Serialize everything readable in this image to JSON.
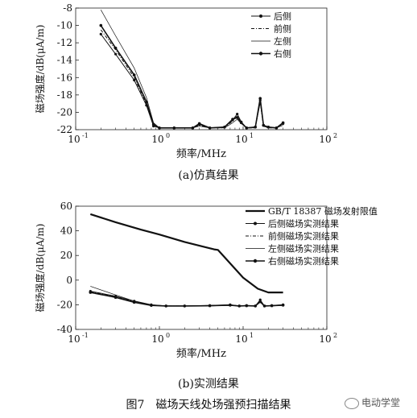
{
  "chart_data": [
    {
      "type": "line",
      "title": "",
      "xlabel": "频率/MHz",
      "ylabel": "磁场强度/dB(μA/m)",
      "x_scale": "log",
      "xlim": [
        0.1,
        100
      ],
      "ylim": [
        -22,
        -8
      ],
      "x_ticks": [
        0.1,
        1,
        10,
        100
      ],
      "x_tick_labels": [
        "10",
        "10",
        "10",
        "10"
      ],
      "x_tick_exponents": [
        "-1",
        "0",
        "1",
        "2"
      ],
      "y_ticks": [
        -8,
        -10,
        -12,
        -14,
        -16,
        -18,
        -20,
        -22
      ],
      "y_tick_labels": [
        "-8",
        "-10",
        "-12",
        "-14",
        "-16",
        "-18",
        "-20",
        "-22"
      ],
      "grid": false,
      "legend_position": "top-right",
      "series": [
        {
          "name": "后侧",
          "style": "marker",
          "x": [
            0.2,
            0.3,
            0.5,
            0.7,
            0.85,
            1.0,
            1.5,
            2.5,
            3.0,
            4.0,
            6.0,
            7.5,
            8.5,
            9.5,
            11,
            14,
            16,
            17.5,
            20,
            25,
            30
          ],
          "y": [
            -11.0,
            -13.3,
            -16.3,
            -19.2,
            -21.6,
            -21.8,
            -21.8,
            -21.8,
            -21.4,
            -21.8,
            -21.7,
            -20.9,
            -20.2,
            -21.1,
            -21.8,
            -21.7,
            -18.6,
            -21.5,
            -21.7,
            -21.8,
            -21.3
          ]
        },
        {
          "name": "前侧",
          "style": "dashdot",
          "x": [
            0.2,
            0.3,
            0.5,
            0.7,
            0.85,
            1.0,
            1.5,
            2.5,
            3.0,
            4.0,
            6.0,
            7.5,
            8.5,
            9.5,
            11,
            14,
            16,
            17.5,
            20,
            25,
            30
          ],
          "y": [
            -10.5,
            -12.8,
            -16.0,
            -19.0,
            -21.5,
            -21.8,
            -21.8,
            -21.8,
            -21.5,
            -21.8,
            -21.8,
            -21.0,
            -20.4,
            -21.2,
            -21.8,
            -21.8,
            -18.7,
            -21.6,
            -21.8,
            -21.8,
            -21.4
          ]
        },
        {
          "name": "左侧",
          "style": "thin",
          "x": [
            0.2,
            0.3,
            0.5,
            0.7,
            0.85,
            1.0,
            1.5,
            2.5,
            3.0,
            4.0,
            6.0,
            7.5,
            8.5,
            9.5,
            11,
            14,
            16,
            17.5,
            20,
            25,
            30
          ],
          "y": [
            -8.2,
            -11.2,
            -14.9,
            -18.3,
            -21.2,
            -21.8,
            -21.8,
            -21.8,
            -21.6,
            -21.8,
            -21.8,
            -21.2,
            -20.8,
            -21.3,
            -21.8,
            -21.8,
            -18.9,
            -21.6,
            -21.8,
            -21.8,
            -21.5
          ]
        },
        {
          "name": "右侧",
          "style": "thick-marker",
          "x": [
            0.2,
            0.3,
            0.5,
            0.7,
            0.85,
            1.0,
            1.5,
            2.5,
            3.0,
            4.0,
            6.0,
            7.5,
            8.5,
            9.5,
            11,
            14,
            16,
            17.5,
            20,
            25,
            30
          ],
          "y": [
            -10.0,
            -12.6,
            -15.7,
            -18.8,
            -21.4,
            -21.8,
            -21.8,
            -21.8,
            -21.3,
            -21.8,
            -21.7,
            -20.8,
            -20.6,
            -21.2,
            -21.8,
            -21.7,
            -18.4,
            -21.5,
            -21.7,
            -21.8,
            -21.2
          ]
        }
      ]
    },
    {
      "type": "line",
      "title": "",
      "xlabel": "频率/MHz",
      "ylabel": "磁场强度/dB(μA/m)",
      "x_scale": "log",
      "xlim": [
        0.1,
        100
      ],
      "ylim": [
        -40,
        60
      ],
      "x_ticks": [
        0.1,
        1,
        10,
        100
      ],
      "x_tick_labels": [
        "10",
        "10",
        "10",
        "10"
      ],
      "x_tick_exponents": [
        "-1",
        "0",
        "1",
        "2"
      ],
      "y_ticks": [
        60,
        40,
        20,
        0,
        -20,
        -40
      ],
      "y_tick_labels": [
        "60",
        "40",
        "20",
        "0",
        "-20",
        "-40"
      ],
      "grid": false,
      "legend_position": "top-right",
      "series": [
        {
          "name": "GB/T 18387 磁场发射限值",
          "style": "limit",
          "x": [
            0.15,
            0.3,
            0.6,
            1.0,
            2.0,
            4.5,
            5.0,
            10,
            15,
            20,
            30
          ],
          "y": [
            53.5,
            47,
            41,
            37,
            31,
            25,
            24.5,
            2,
            -7,
            -10,
            -10
          ]
        },
        {
          "name": "后侧磁场实测结果",
          "style": "marker",
          "x": [
            0.15,
            0.3,
            0.5,
            0.8,
            1.2,
            2,
            4,
            7,
            9,
            11,
            14,
            16,
            18,
            22,
            30
          ],
          "y": [
            -9,
            -13,
            -17,
            -20,
            -21,
            -21,
            -20.5,
            -20,
            -21,
            -20.5,
            -21,
            -16,
            -21,
            -20.5,
            -20
          ]
        },
        {
          "name": "前侧磁场实测结果",
          "style": "dashdot",
          "x": [
            0.15,
            0.3,
            0.5,
            0.8,
            1.2,
            2,
            4,
            7,
            9,
            11,
            14,
            16,
            18,
            22,
            30
          ],
          "y": [
            -9.5,
            -13.5,
            -17.5,
            -20.2,
            -21,
            -21,
            -20.7,
            -20.2,
            -21,
            -20.7,
            -21,
            -17,
            -21,
            -20.7,
            -20.2
          ]
        },
        {
          "name": "左侧磁场实测结果",
          "style": "thin",
          "x": [
            0.15,
            0.3,
            0.5,
            0.8,
            1.2,
            2,
            4,
            7,
            9,
            11,
            14,
            16,
            18,
            22,
            30
          ],
          "y": [
            -5,
            -12,
            -17,
            -20.5,
            -21.2,
            -21.2,
            -21,
            -20.5,
            -21,
            -21,
            -21,
            -18,
            -21.2,
            -21,
            -20.5
          ]
        },
        {
          "name": "右侧磁场实测结果",
          "style": "thick-marker",
          "x": [
            0.15,
            0.3,
            0.5,
            0.8,
            1.2,
            2,
            4,
            7,
            9,
            11,
            14,
            16,
            18,
            22,
            30
          ],
          "y": [
            -10,
            -14,
            -18,
            -20.5,
            -21,
            -21,
            -20.8,
            -20.3,
            -21,
            -20.8,
            -21,
            -17.5,
            -21,
            -20.8,
            -20.3
          ]
        }
      ]
    }
  ],
  "captions": {
    "a": "(a)仿真结果",
    "b": "(b)实测结果",
    "figure": "图7　磁场天线处场强预扫描结果"
  },
  "watermark": {
    "text": "电动学堂",
    "icon": "wechat-icon"
  }
}
